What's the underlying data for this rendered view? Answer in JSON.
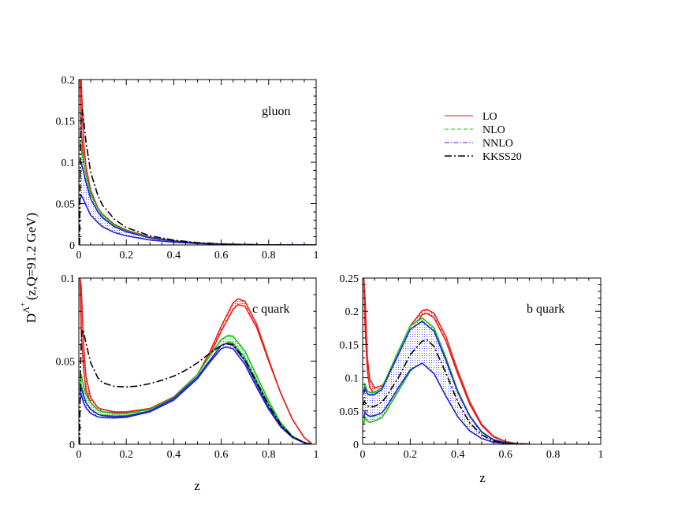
{
  "chart_data": [
    {
      "type": "line",
      "id": "gluon",
      "title": "gluon",
      "xlabel": "",
      "ylabel": "",
      "xlim": [
        0,
        1
      ],
      "ylim": [
        0,
        0.2
      ],
      "xticks": [
        0,
        0.2,
        0.4,
        0.6,
        0.8,
        1
      ],
      "xtick_labels": [
        "0",
        "0.2",
        "0.4",
        "0.6",
        "0.8",
        "1"
      ],
      "yticks": [
        0,
        0.05,
        0.1,
        0.15,
        0.2
      ],
      "ytick_labels": [
        "0",
        "0.05",
        "0.1",
        "0.15",
        "0.2"
      ],
      "series": [
        {
          "name": "LO",
          "x": [
            0.005,
            0.01,
            0.02,
            0.03,
            0.05,
            0.08,
            0.1,
            0.15,
            0.2,
            0.3,
            0.4,
            0.5,
            0.6,
            0.7,
            0.8,
            0.9,
            1.0
          ],
          "lower": [
            0.2,
            0.14,
            0.1,
            0.08,
            0.058,
            0.04,
            0.033,
            0.022,
            0.016,
            0.0085,
            0.0045,
            0.0022,
            0.001,
            0.0004,
            0.0001,
            2e-05,
            0
          ],
          "upper": [
            0.25,
            0.2,
            0.125,
            0.095,
            0.066,
            0.045,
            0.037,
            0.025,
            0.018,
            0.0095,
            0.005,
            0.0025,
            0.0011,
            0.00045,
            0.0001,
            2e-05,
            0
          ]
        },
        {
          "name": "NLO",
          "x": [
            0.005,
            0.01,
            0.02,
            0.03,
            0.05,
            0.08,
            0.1,
            0.15,
            0.2,
            0.3,
            0.4,
            0.5,
            0.6,
            0.7,
            0.8,
            0.9,
            1.0
          ],
          "lower": [
            0.1,
            0.095,
            0.08,
            0.068,
            0.05,
            0.036,
            0.03,
            0.02,
            0.014,
            0.0075,
            0.004,
            0.002,
            0.0009,
            0.0003,
            0.0001,
            2e-05,
            0
          ],
          "upper": [
            0.125,
            0.118,
            0.1,
            0.085,
            0.062,
            0.044,
            0.036,
            0.024,
            0.017,
            0.009,
            0.0048,
            0.0023,
            0.001,
            0.0004,
            0.0001,
            2e-05,
            0
          ]
        },
        {
          "name": "NNLO",
          "x": [
            0.005,
            0.01,
            0.02,
            0.03,
            0.05,
            0.08,
            0.1,
            0.15,
            0.2,
            0.3,
            0.4,
            0.5,
            0.6,
            0.7,
            0.8,
            0.9,
            1.0
          ],
          "lower": [
            0.055,
            0.06,
            0.055,
            0.048,
            0.036,
            0.027,
            0.022,
            0.015,
            0.011,
            0.006,
            0.0033,
            0.0017,
            0.0008,
            0.0003,
            0.0001,
            2e-05,
            0
          ],
          "upper": [
            0.1,
            0.1,
            0.088,
            0.076,
            0.056,
            0.04,
            0.033,
            0.022,
            0.016,
            0.0085,
            0.0046,
            0.0023,
            0.001,
            0.0004,
            0.0001,
            2e-05,
            0
          ]
        },
        {
          "name": "KKSS20",
          "x": [
            0.003,
            0.007,
            0.01,
            0.015,
            0.02,
            0.03,
            0.05,
            0.08,
            0.1,
            0.15,
            0.2,
            0.3,
            0.4,
            0.5,
            0.6,
            0.7,
            0.8,
            0.9,
            1.0
          ],
          "y": [
            0.0,
            0.12,
            0.16,
            0.163,
            0.152,
            0.125,
            0.088,
            0.06,
            0.048,
            0.031,
            0.021,
            0.011,
            0.0058,
            0.0028,
            0.0012,
            0.0005,
            0.00015,
            2e-05,
            0
          ]
        }
      ]
    },
    {
      "type": "line",
      "id": "c-quark",
      "title": "c quark",
      "xlabel": "z",
      "ylabel": "",
      "xlim": [
        0,
        1
      ],
      "ylim": [
        0,
        0.1
      ],
      "xticks": [
        0,
        0.2,
        0.4,
        0.6,
        0.8,
        1
      ],
      "xtick_labels": [
        "0",
        "0.2",
        "0.4",
        "0.6",
        "0.8",
        "1"
      ],
      "yticks": [
        0,
        0.05,
        0.1
      ],
      "ytick_labels": [
        "0",
        "0.05",
        "0.1"
      ],
      "series": [
        {
          "name": "LO",
          "x": [
            0.005,
            0.01,
            0.02,
            0.03,
            0.05,
            0.08,
            0.1,
            0.15,
            0.2,
            0.3,
            0.4,
            0.5,
            0.55,
            0.6,
            0.65,
            0.67,
            0.7,
            0.75,
            0.8,
            0.85,
            0.9,
            0.95,
            0.98
          ],
          "lower": [
            0.1,
            0.068,
            0.045,
            0.033,
            0.025,
            0.0205,
            0.0195,
            0.019,
            0.019,
            0.021,
            0.028,
            0.041,
            0.053,
            0.068,
            0.081,
            0.084,
            0.083,
            0.07,
            0.05,
            0.031,
            0.015,
            0.004,
            0.0006
          ],
          "upper": [
            0.1,
            0.095,
            0.06,
            0.041,
            0.028,
            0.022,
            0.021,
            0.0195,
            0.0195,
            0.0215,
            0.0285,
            0.042,
            0.055,
            0.071,
            0.085,
            0.0875,
            0.086,
            0.072,
            0.051,
            0.031,
            0.015,
            0.004,
            0.0006
          ]
        },
        {
          "name": "NLO",
          "x": [
            0.005,
            0.01,
            0.02,
            0.03,
            0.05,
            0.08,
            0.1,
            0.15,
            0.2,
            0.3,
            0.4,
            0.5,
            0.55,
            0.6,
            0.63,
            0.65,
            0.7,
            0.75,
            0.8,
            0.85,
            0.9,
            0.95,
            0.98
          ],
          "lower": [
            0.03,
            0.036,
            0.03,
            0.025,
            0.021,
            0.018,
            0.0175,
            0.017,
            0.0172,
            0.02,
            0.027,
            0.04,
            0.05,
            0.059,
            0.0615,
            0.061,
            0.052,
            0.038,
            0.024,
            0.012,
            0.0045,
            0.001,
            0.0001
          ],
          "upper": [
            0.036,
            0.042,
            0.035,
            0.03,
            0.025,
            0.0205,
            0.0195,
            0.0185,
            0.0185,
            0.021,
            0.028,
            0.042,
            0.053,
            0.063,
            0.0655,
            0.065,
            0.056,
            0.041,
            0.026,
            0.013,
            0.005,
            0.001,
            0.0001
          ]
        },
        {
          "name": "NNLO",
          "x": [
            0.005,
            0.01,
            0.02,
            0.03,
            0.05,
            0.08,
            0.1,
            0.15,
            0.2,
            0.3,
            0.4,
            0.5,
            0.55,
            0.6,
            0.62,
            0.65,
            0.7,
            0.75,
            0.8,
            0.85,
            0.9,
            0.95,
            0.98
          ],
          "lower": [
            0.026,
            0.03,
            0.025,
            0.022,
            0.0185,
            0.0165,
            0.016,
            0.0158,
            0.0162,
            0.0195,
            0.0265,
            0.0395,
            0.049,
            0.0575,
            0.0585,
            0.0575,
            0.048,
            0.034,
            0.021,
            0.0105,
            0.004,
            0.0008,
            0.0001
          ],
          "upper": [
            0.03,
            0.034,
            0.029,
            0.025,
            0.021,
            0.018,
            0.0172,
            0.0166,
            0.0168,
            0.02,
            0.0275,
            0.0405,
            0.05,
            0.0595,
            0.0605,
            0.0595,
            0.05,
            0.036,
            0.022,
            0.011,
            0.0042,
            0.0009,
            0.0001
          ]
        },
        {
          "name": "KKSS20",
          "x": [
            0.003,
            0.007,
            0.01,
            0.015,
            0.02,
            0.03,
            0.05,
            0.08,
            0.1,
            0.15,
            0.2,
            0.25,
            0.3,
            0.35,
            0.4,
            0.45,
            0.5,
            0.55,
            0.6,
            0.63,
            0.65,
            0.7,
            0.75,
            0.8,
            0.85,
            0.9,
            0.95,
            0.98
          ],
          "y": [
            0.0,
            0.045,
            0.062,
            0.069,
            0.068,
            0.061,
            0.049,
            0.04,
            0.037,
            0.0348,
            0.0345,
            0.035,
            0.0365,
            0.0385,
            0.041,
            0.0445,
            0.049,
            0.0545,
            0.0595,
            0.0605,
            0.06,
            0.051,
            0.037,
            0.0235,
            0.012,
            0.0045,
            0.001,
            0.0001
          ]
        }
      ]
    },
    {
      "type": "line",
      "id": "b-quark",
      "title": "b quark",
      "xlabel": "z",
      "ylabel": "",
      "xlim": [
        0,
        1
      ],
      "ylim": [
        0,
        0.25
      ],
      "xticks": [
        0,
        0.2,
        0.4,
        0.6,
        0.8,
        1
      ],
      "xtick_labels": [
        "0",
        "0.2",
        "0.4",
        "0.6",
        "0.8",
        "1"
      ],
      "yticks": [
        0,
        0.05,
        0.1,
        0.15,
        0.2,
        0.25
      ],
      "ytick_labels": [
        "0",
        "0.05",
        "0.1",
        "0.15",
        "0.2",
        "0.25"
      ],
      "series": [
        {
          "name": "LO",
          "x": [
            0.005,
            0.01,
            0.02,
            0.03,
            0.05,
            0.08,
            0.1,
            0.15,
            0.2,
            0.25,
            0.27,
            0.3,
            0.35,
            0.4,
            0.45,
            0.5,
            0.55,
            0.6,
            0.65,
            0.7
          ],
          "lower": [
            0.25,
            0.18,
            0.11,
            0.085,
            0.075,
            0.078,
            0.085,
            0.12,
            0.168,
            0.195,
            0.197,
            0.19,
            0.155,
            0.105,
            0.06,
            0.028,
            0.011,
            0.0035,
            0.001,
            0.0002
          ],
          "upper": [
            0.25,
            0.22,
            0.13,
            0.098,
            0.085,
            0.088,
            0.095,
            0.13,
            0.178,
            0.201,
            0.203,
            0.197,
            0.162,
            0.11,
            0.064,
            0.03,
            0.012,
            0.004,
            0.001,
            0.0002
          ]
        },
        {
          "name": "NLO",
          "x": [
            0.005,
            0.01,
            0.02,
            0.03,
            0.05,
            0.08,
            0.1,
            0.15,
            0.2,
            0.25,
            0.3,
            0.35,
            0.4,
            0.45,
            0.5,
            0.55,
            0.6,
            0.65,
            0.7
          ],
          "lower": [
            0.03,
            0.04,
            0.035,
            0.033,
            0.035,
            0.04,
            0.05,
            0.08,
            0.11,
            0.126,
            0.11,
            0.075,
            0.043,
            0.021,
            0.009,
            0.0035,
            0.001,
            0.0003,
            0.0001
          ],
          "upper": [
            0.08,
            0.09,
            0.08,
            0.078,
            0.078,
            0.085,
            0.1,
            0.14,
            0.178,
            0.19,
            0.175,
            0.13,
            0.08,
            0.043,
            0.019,
            0.007,
            0.002,
            0.0005,
            0.0001
          ]
        },
        {
          "name": "NNLO",
          "x": [
            0.005,
            0.01,
            0.02,
            0.03,
            0.05,
            0.08,
            0.1,
            0.15,
            0.2,
            0.25,
            0.3,
            0.35,
            0.4,
            0.45,
            0.5,
            0.55,
            0.6,
            0.65,
            0.7
          ],
          "lower": [
            0.04,
            0.048,
            0.044,
            0.042,
            0.043,
            0.047,
            0.056,
            0.085,
            0.112,
            0.122,
            0.106,
            0.072,
            0.041,
            0.02,
            0.0085,
            0.003,
            0.001,
            0.0003,
            0.0001
          ],
          "upper": [
            0.075,
            0.084,
            0.076,
            0.074,
            0.075,
            0.082,
            0.097,
            0.135,
            0.173,
            0.185,
            0.17,
            0.126,
            0.078,
            0.042,
            0.018,
            0.0065,
            0.002,
            0.0005,
            0.0001
          ]
        },
        {
          "name": "KKSS20",
          "x": [
            0.003,
            0.007,
            0.01,
            0.02,
            0.03,
            0.05,
            0.08,
            0.1,
            0.15,
            0.2,
            0.25,
            0.27,
            0.3,
            0.35,
            0.4,
            0.45,
            0.5,
            0.55,
            0.6,
            0.65,
            0.7
          ],
          "y": [
            0.06,
            0.065,
            0.063,
            0.058,
            0.056,
            0.057,
            0.063,
            0.072,
            0.1,
            0.135,
            0.155,
            0.157,
            0.147,
            0.107,
            0.063,
            0.032,
            0.014,
            0.005,
            0.0015,
            0.0004,
            0.0001
          ]
        }
      ]
    }
  ],
  "figure": {
    "ylabel_main": "D",
    "ylabel_sup": "Λ",
    "ylabel_supsup": "+",
    "ylabel_rest": "(z,Q=91.2 GeV)"
  },
  "legend": {
    "entries": [
      {
        "label": "LO",
        "color": "#e8201c",
        "dash": ""
      },
      {
        "label": "NLO",
        "color": "#18c018",
        "dash": "5,3"
      },
      {
        "label": "NNLO",
        "color": "#2020d0",
        "dash": "6,2,1.5,2"
      },
      {
        "label": "KKSS20",
        "color": "#000000",
        "dash": "9,3,2,3"
      }
    ]
  },
  "colors": {
    "LO_fill": "#e8201c",
    "NLO_fill": "#3ddc3d",
    "NNLO_fill": "#2a2ad6",
    "KKSS20": "#000000"
  }
}
